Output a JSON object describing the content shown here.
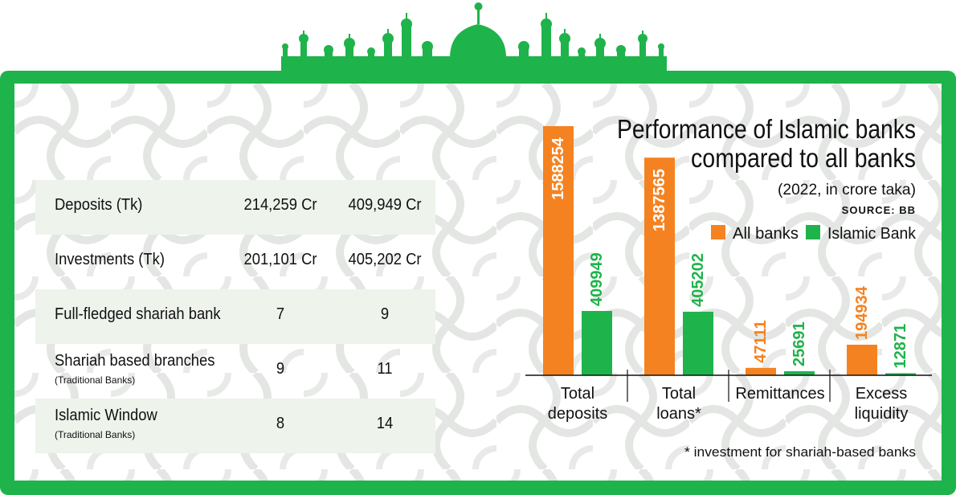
{
  "table": {
    "rows": [
      {
        "label": "Deposits (Tk)",
        "sub": "",
        "v1": "214,259 Cr",
        "v2": "409,949 Cr"
      },
      {
        "label": "Investments (Tk)",
        "sub": "",
        "v1": "201,101 Cr",
        "v2": "405,202 Cr"
      },
      {
        "label": "Full-fledged shariah bank",
        "sub": "",
        "v1": "7",
        "v2": "9"
      },
      {
        "label": "Shariah based branches",
        "sub": "(Traditional Banks)",
        "v1": "9",
        "v2": "11"
      },
      {
        "label": "Islamic Window",
        "sub": "(Traditional Banks)",
        "v1": "8",
        "v2": "14"
      }
    ]
  },
  "chart_data": {
    "type": "bar",
    "title_line1": "Performance of Islamic banks",
    "title_line2": "compared to all banks",
    "subtitle": "(2022, in crore taka)",
    "source": "SOURCE: BB",
    "footnote": "* investment for shariah-based banks",
    "categories": [
      {
        "line1": "Total",
        "line2": "deposits"
      },
      {
        "line1": "Total",
        "line2": "loans*"
      },
      {
        "line1": "Remittances",
        "line2": ""
      },
      {
        "line1": "Excess",
        "line2": "liquidity"
      }
    ],
    "series": [
      {
        "name": "All banks",
        "color": "#f58220",
        "values": [
          1588254,
          1387565,
          47111,
          194934
        ]
      },
      {
        "name": "Islamic Bank",
        "color": "#1fb34b",
        "values": [
          409949,
          405202,
          25691,
          12871
        ]
      }
    ],
    "legend": "top-right"
  }
}
